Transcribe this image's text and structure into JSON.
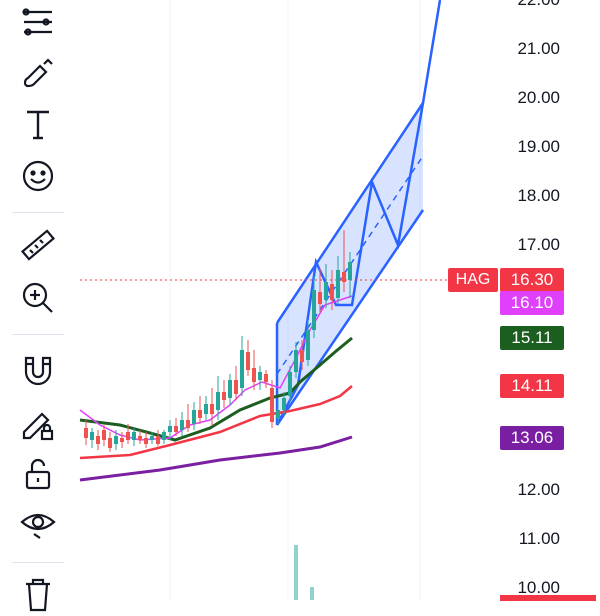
{
  "toolbar": {
    "tools": [
      {
        "name": "trend-tools-icon"
      },
      {
        "name": "brush-icon"
      },
      {
        "name": "text-icon",
        "glyph": "T"
      },
      {
        "name": "emoji-icon"
      },
      {
        "name": "ruler-icon"
      },
      {
        "name": "zoom-in-icon"
      },
      {
        "name": "magnet-icon"
      },
      {
        "name": "lock-drawing-icon"
      },
      {
        "name": "unlock-icon"
      },
      {
        "name": "eye-icon"
      },
      {
        "name": "trash-icon"
      }
    ]
  },
  "price_axis": {
    "ticks": [
      "22.00",
      "21.00",
      "20.00",
      "19.00",
      "18.00",
      "17.00",
      "12.00",
      "11.00",
      "10.00"
    ]
  },
  "price_tags": {
    "symbol": "HAG",
    "last": "16.30",
    "ma_fast": "16.10",
    "ma_mid": "15.11",
    "ma_slow": "14.11",
    "ma_long": "13.06"
  },
  "colors": {
    "last": "#f23645",
    "ma_fast": "#e040fb",
    "ma_mid": "#1b5e20",
    "ma_slow": "#f23645",
    "ma_long": "#7b1fa2",
    "channel": "#2962ff",
    "up": "#26a69a",
    "down": "#ef5350"
  },
  "chart_data": {
    "type": "candlestick",
    "y_ticks": [
      22,
      21,
      20,
      19,
      18,
      17,
      12,
      11,
      10
    ],
    "lines": {
      "ma_fast": 16.1,
      "ma_mid": 15.11,
      "ma_slow": 14.11,
      "ma_long": 13.06,
      "last_price": 16.3
    }
  }
}
